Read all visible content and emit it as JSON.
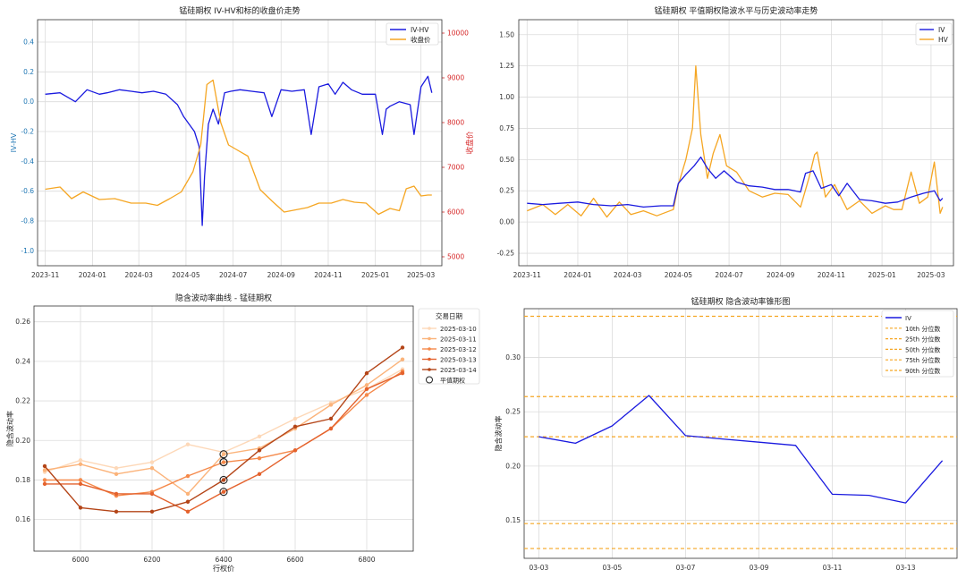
{
  "charts": [
    {
      "title": "锰硅期权 IV-HV和标的收盘价走势",
      "legend": [
        "IV-HV",
        "收盘价"
      ],
      "ylabel_left": "IV-HV",
      "ylabel_right": "收盘价",
      "x_ticks": [
        "2023-11",
        "2024-01",
        "2024-03",
        "2024-05",
        "2024-07",
        "2024-09",
        "2024-11",
        "2025-01",
        "2025-03"
      ],
      "y_left_ticks": [
        "0.4",
        "0.2",
        "0.0",
        "-0.2",
        "-0.4",
        "-0.6",
        "-0.8",
        "-1.0"
      ],
      "y_right_ticks": [
        "10000",
        "9000",
        "8000",
        "7000",
        "6000",
        "5000"
      ]
    },
    {
      "title": "锰硅期权 平值期权隐波水平与历史波动率走势",
      "legend": [
        "IV",
        "HV"
      ],
      "x_ticks": [
        "2023-11",
        "2024-01",
        "2024-03",
        "2024-05",
        "2024-07",
        "2024-09",
        "2024-11",
        "2025-01",
        "2025-03"
      ],
      "y_ticks": [
        "1.50",
        "1.25",
        "1.00",
        "0.75",
        "0.50",
        "0.25",
        "0.00",
        "-0.25"
      ]
    },
    {
      "title": "隐含波动率曲线 - 锰硅期权",
      "xlabel": "行权价",
      "ylabel": "隐含波动率",
      "legend_title": "交易日期",
      "legend": [
        "2025-03-10",
        "2025-03-11",
        "2025-03-12",
        "2025-03-13",
        "2025-03-14",
        "平值期权"
      ],
      "x_ticks": [
        "6000",
        "6200",
        "6400",
        "6600",
        "6800"
      ],
      "y_ticks": [
        "0.26",
        "0.24",
        "0.22",
        "0.20",
        "0.18",
        "0.16"
      ]
    },
    {
      "title": "锰硅期权 隐含波动率锥形图",
      "ylabel": "隐含波动率",
      "legend": [
        "IV",
        "10th 分位数",
        "25th 分位数",
        "50th 分位数",
        "75th 分位数",
        "90th 分位数"
      ],
      "x_ticks": [
        "03-03",
        "03-05",
        "03-07",
        "03-09",
        "03-11",
        "03-13"
      ],
      "y_ticks": [
        "0.30",
        "0.25",
        "0.20",
        "0.15"
      ]
    }
  ],
  "chart_data": [
    {
      "type": "line",
      "title": "锰硅期权 IV-HV和标的收盘价走势",
      "x_range": [
        "2023-10-22",
        "2025-03-28"
      ],
      "ylim_left": [
        -1.1,
        0.55
      ],
      "ylim_right": [
        4800,
        10300
      ],
      "series": [
        {
          "name": "IV-HV",
          "axis": "left",
          "color": "#1a1adf",
          "x": [
            "2023-11-01",
            "2023-11-20",
            "2023-12-10",
            "2023-12-25",
            "2024-01-10",
            "2024-01-20",
            "2024-02-05",
            "2024-02-20",
            "2024-03-05",
            "2024-03-20",
            "2024-04-05",
            "2024-04-20",
            "2024-04-28",
            "2024-05-05",
            "2024-05-12",
            "2024-05-18",
            "2024-05-22",
            "2024-05-25",
            "2024-05-30",
            "2024-06-05",
            "2024-06-12",
            "2024-06-20",
            "2024-06-28",
            "2024-07-10",
            "2024-07-25",
            "2024-08-10",
            "2024-08-20",
            "2024-09-01",
            "2024-09-15",
            "2024-10-01",
            "2024-10-10",
            "2024-10-20",
            "2024-11-01",
            "2024-11-10",
            "2024-11-20",
            "2024-12-01",
            "2024-12-15",
            "2025-01-01",
            "2025-01-10",
            "2025-01-15",
            "2025-01-20",
            "2025-02-01",
            "2025-02-15",
            "2025-02-20",
            "2025-03-01",
            "2025-03-10",
            "2025-03-15"
          ],
          "y": [
            0.05,
            0.06,
            0.0,
            0.08,
            0.05,
            0.06,
            0.08,
            0.07,
            0.06,
            0.07,
            0.05,
            -0.02,
            -0.1,
            -0.15,
            -0.2,
            -0.3,
            -0.83,
            -0.5,
            -0.15,
            -0.05,
            -0.15,
            0.06,
            0.07,
            0.08,
            0.07,
            0.06,
            -0.1,
            0.08,
            0.07,
            0.08,
            -0.22,
            0.1,
            0.12,
            0.05,
            0.13,
            0.08,
            0.05,
            0.05,
            -0.22,
            -0.05,
            -0.03,
            0.0,
            -0.02,
            -0.22,
            0.1,
            0.17,
            0.06
          ]
        },
        {
          "name": "收盘价",
          "axis": "right",
          "color": "#f5a623",
          "x": [
            "2023-11-01",
            "2023-11-20",
            "2023-12-05",
            "2023-12-20",
            "2024-01-10",
            "2024-01-30",
            "2024-02-20",
            "2024-03-10",
            "2024-03-25",
            "2024-04-10",
            "2024-04-25",
            "2024-05-10",
            "2024-05-20",
            "2024-05-28",
            "2024-06-05",
            "2024-06-15",
            "2024-06-25",
            "2024-07-05",
            "2024-07-20",
            "2024-08-05",
            "2024-08-20",
            "2024-09-05",
            "2024-09-20",
            "2024-10-05",
            "2024-10-20",
            "2024-11-05",
            "2024-11-20",
            "2024-12-05",
            "2024-12-20",
            "2025-01-05",
            "2025-01-20",
            "2025-02-01",
            "2025-02-10",
            "2025-02-20",
            "2025-03-01",
            "2025-03-10",
            "2025-03-15"
          ],
          "y": [
            6510,
            6560,
            6300,
            6450,
            6280,
            6300,
            6200,
            6200,
            6150,
            6300,
            6450,
            6900,
            7500,
            8850,
            8950,
            8000,
            7500,
            7400,
            7250,
            6500,
            6250,
            6000,
            6050,
            6100,
            6200,
            6200,
            6280,
            6220,
            6200,
            5950,
            6080,
            6030,
            6520,
            6580,
            6360,
            6380,
            6380
          ]
        }
      ]
    },
    {
      "type": "line",
      "title": "锰硅期权 平值期权隐波水平与历史波动率走势",
      "x_range": [
        "2023-10-22",
        "2025-03-28"
      ],
      "ylim": [
        -0.35,
        1.62
      ],
      "series": [
        {
          "name": "IV",
          "color": "#1a1adf",
          "x": [
            "2023-11-01",
            "2023-11-20",
            "2023-12-10",
            "2024-01-01",
            "2024-01-20",
            "2024-02-10",
            "2024-03-01",
            "2024-03-20",
            "2024-04-10",
            "2024-04-25",
            "2024-05-01",
            "2024-05-10",
            "2024-05-20",
            "2024-05-28",
            "2024-06-05",
            "2024-06-15",
            "2024-06-25",
            "2024-07-10",
            "2024-07-25",
            "2024-08-10",
            "2024-08-25",
            "2024-09-10",
            "2024-09-25",
            "2024-10-01",
            "2024-10-10",
            "2024-10-20",
            "2024-11-01",
            "2024-11-10",
            "2024-11-20",
            "2024-12-05",
            "2024-12-20",
            "2025-01-05",
            "2025-01-20",
            "2025-02-05",
            "2025-02-20",
            "2025-03-05",
            "2025-03-12",
            "2025-03-15"
          ],
          "y": [
            0.15,
            0.14,
            0.15,
            0.16,
            0.14,
            0.13,
            0.14,
            0.12,
            0.13,
            0.13,
            0.31,
            0.38,
            0.45,
            0.52,
            0.43,
            0.35,
            0.41,
            0.32,
            0.29,
            0.28,
            0.26,
            0.26,
            0.24,
            0.39,
            0.41,
            0.27,
            0.3,
            0.21,
            0.31,
            0.18,
            0.17,
            0.15,
            0.16,
            0.2,
            0.23,
            0.25,
            0.17,
            0.19
          ]
        },
        {
          "name": "HV",
          "color": "#f5a623",
          "x": [
            "2023-11-01",
            "2023-11-20",
            "2023-12-05",
            "2023-12-20",
            "2024-01-05",
            "2024-01-20",
            "2024-02-05",
            "2024-02-20",
            "2024-03-05",
            "2024-03-20",
            "2024-04-05",
            "2024-04-25",
            "2024-05-01",
            "2024-05-10",
            "2024-05-18",
            "2024-05-22",
            "2024-05-28",
            "2024-06-05",
            "2024-06-12",
            "2024-06-20",
            "2024-06-28",
            "2024-07-10",
            "2024-07-25",
            "2024-08-10",
            "2024-08-25",
            "2024-09-10",
            "2024-09-25",
            "2024-10-05",
            "2024-10-12",
            "2024-10-15",
            "2024-10-25",
            "2024-11-05",
            "2024-11-20",
            "2024-12-05",
            "2024-12-20",
            "2025-01-05",
            "2025-01-15",
            "2025-01-25",
            "2025-02-05",
            "2025-02-15",
            "2025-02-25",
            "2025-03-05",
            "2025-03-12",
            "2025-03-15"
          ],
          "y": [
            0.09,
            0.14,
            0.06,
            0.14,
            0.05,
            0.19,
            0.04,
            0.16,
            0.06,
            0.09,
            0.05,
            0.1,
            0.3,
            0.5,
            0.75,
            1.25,
            0.7,
            0.35,
            0.55,
            0.7,
            0.45,
            0.4,
            0.25,
            0.2,
            0.23,
            0.22,
            0.12,
            0.35,
            0.54,
            0.56,
            0.2,
            0.3,
            0.1,
            0.17,
            0.07,
            0.13,
            0.1,
            0.1,
            0.4,
            0.15,
            0.2,
            0.48,
            0.07,
            0.12
          ]
        }
      ]
    },
    {
      "type": "line",
      "title": "隐含波动率曲线 - 锰硅期权",
      "xlabel": "行权价",
      "ylabel": "隐含波动率",
      "xlim": [
        5870,
        6930
      ],
      "ylim": [
        0.144,
        0.268
      ],
      "series": [
        {
          "name": "2025-03-10",
          "color": "#fdd8b8",
          "x": [
            5900,
            6000,
            6100,
            6200,
            6300,
            6400,
            6500,
            6600,
            6700,
            6800,
            6900
          ],
          "y": [
            0.184,
            0.19,
            0.186,
            0.189,
            0.198,
            0.194,
            0.202,
            0.211,
            0.219,
            0.226,
            0.236
          ]
        },
        {
          "name": "2025-03-11",
          "color": "#fbb37a",
          "x": [
            5900,
            6000,
            6100,
            6200,
            6300,
            6400,
            6500,
            6600,
            6700,
            6800,
            6900
          ],
          "y": [
            0.185,
            0.188,
            0.183,
            0.186,
            0.173,
            0.193,
            0.196,
            0.206,
            0.218,
            0.228,
            0.241
          ]
        },
        {
          "name": "2025-03-12",
          "color": "#f5894a",
          "x": [
            5900,
            6000,
            6100,
            6200,
            6300,
            6400,
            6500,
            6600,
            6700,
            6800,
            6900
          ],
          "y": [
            0.18,
            0.18,
            0.172,
            0.174,
            0.182,
            0.189,
            0.191,
            0.195,
            0.206,
            0.223,
            0.235
          ]
        },
        {
          "name": "2025-03-13",
          "color": "#e4622d",
          "x": [
            5900,
            6000,
            6100,
            6200,
            6300,
            6400,
            6500,
            6600,
            6700,
            6800,
            6900
          ],
          "y": [
            0.178,
            0.178,
            0.173,
            0.173,
            0.164,
            0.174,
            0.183,
            0.195,
            0.206,
            0.226,
            0.234
          ]
        },
        {
          "name": "2025-03-14",
          "color": "#b44518",
          "x": [
            5900,
            6000,
            6100,
            6200,
            6300,
            6400,
            6500,
            6600,
            6700,
            6800,
            6900
          ],
          "y": [
            0.187,
            0.166,
            0.164,
            0.164,
            0.169,
            0.18,
            0.195,
            0.207,
            0.211,
            0.234,
            0.247
          ]
        }
      ],
      "atm": {
        "name": "平值期权",
        "x": [
          6400,
          6400,
          6400,
          6400,
          6400
        ],
        "y": [
          0.193,
          0.189,
          0.189,
          0.18,
          0.174
        ]
      }
    },
    {
      "type": "line",
      "title": "锰硅期权 隐含波动率锥形图",
      "ylabel": "隐含波动率",
      "x": [
        "03-03",
        "03-04",
        "03-05",
        "03-06",
        "03-07",
        "03-08",
        "03-09",
        "03-10",
        "03-11",
        "03-12",
        "03-13",
        "03-14"
      ],
      "ylim": [
        0.115,
        0.345
      ],
      "series": [
        {
          "name": "IV",
          "color": "#1a1adf",
          "y": [
            0.227,
            0.221,
            0.237,
            0.265,
            0.228,
            0.225,
            0.222,
            0.219,
            0.174,
            0.173,
            0.166,
            0.205
          ]
        }
      ],
      "quantiles": [
        {
          "name": "10th 分位数",
          "value": 0.124
        },
        {
          "name": "25th 分位数",
          "value": 0.147
        },
        {
          "name": "50th 分位数",
          "value": 0.227
        },
        {
          "name": "75th 分位数",
          "value": 0.264
        },
        {
          "name": "90th 分位数",
          "value": 0.338
        }
      ]
    }
  ]
}
